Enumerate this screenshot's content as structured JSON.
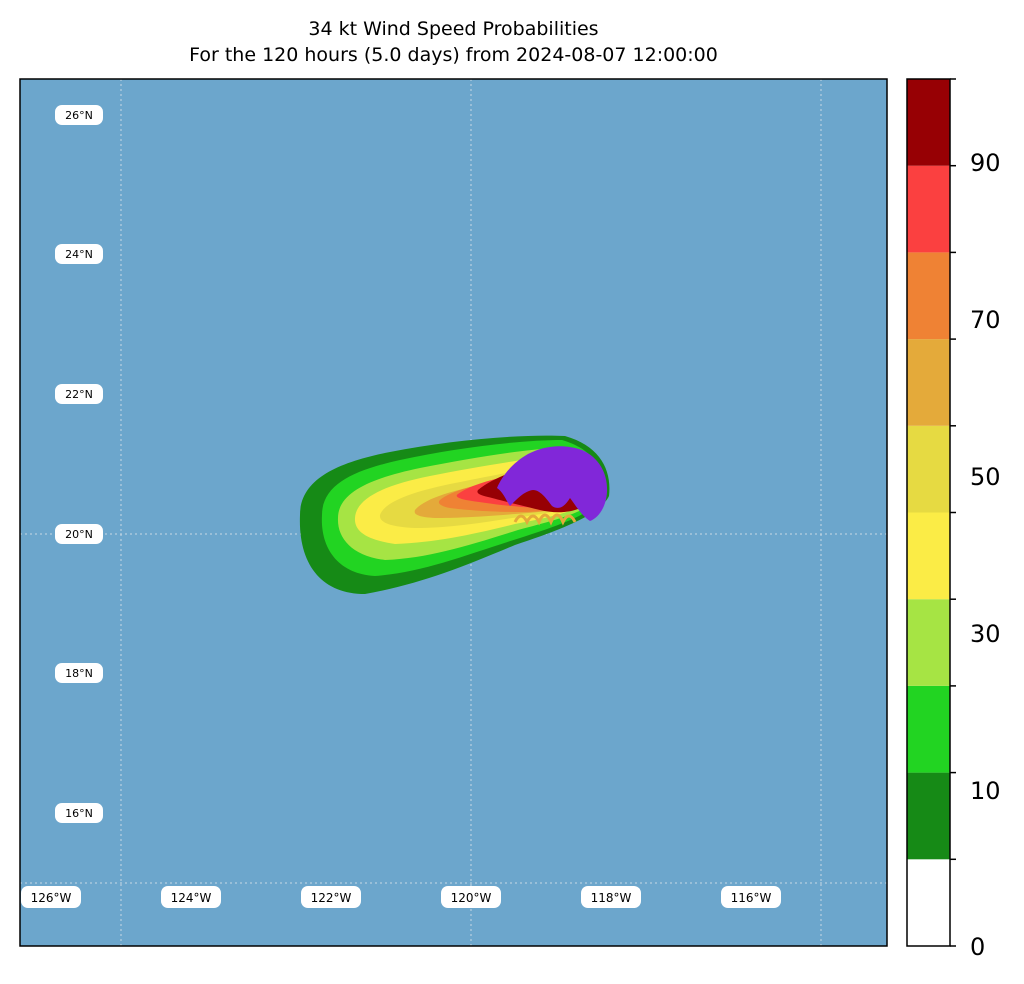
{
  "title_line1": "34 kt Wind Speed Probabilities",
  "title_line2": "For the 120 hours (5.0 days) from 2024-08-07 12:00:00",
  "map": {
    "ocean_color": "#6ca6cc",
    "lat_labels": [
      "26°N",
      "24°N",
      "22°N",
      "20°N",
      "18°N",
      "16°N"
    ],
    "lon_labels": [
      "126°W",
      "124°W",
      "122°W",
      "120°W",
      "118°W",
      "116°W"
    ]
  },
  "colorbar": {
    "tick_labels": [
      "0",
      "10",
      "30",
      "50",
      "70",
      "90"
    ],
    "levels": [
      0,
      10,
      20,
      30,
      40,
      50,
      60,
      70,
      80,
      90,
      100
    ],
    "colors": [
      "#ffffff",
      "#168a16",
      "#22d422",
      "#a6e444",
      "#fbec46",
      "#e6da42",
      "#e4aa3a",
      "#ef8234",
      "#fb4040",
      "#970004",
      "#8127d9"
    ]
  }
}
